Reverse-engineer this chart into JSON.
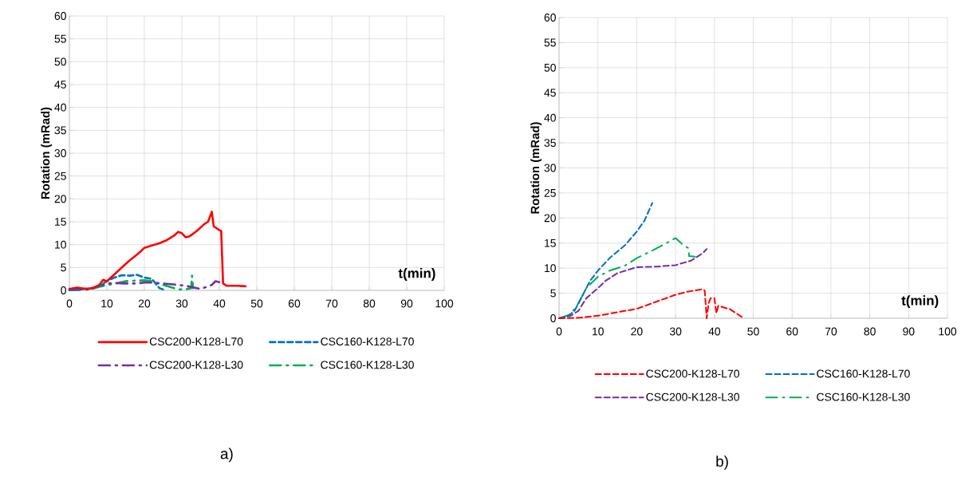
{
  "chart_data": [
    {
      "type": "line",
      "ylabel": "Rotation (mRad)",
      "xlabel": "t(min)",
      "xlim": [
        0,
        100
      ],
      "ylim": [
        0,
        60
      ],
      "xticks": [
        0,
        10,
        20,
        30,
        40,
        50,
        60,
        70,
        80,
        90,
        100
      ],
      "yticks": [
        0,
        5,
        10,
        15,
        20,
        25,
        30,
        35,
        40,
        45,
        50,
        55,
        60
      ],
      "grid": true,
      "legend": "bottom",
      "annotations": [
        "a)"
      ],
      "series": [
        {
          "name": "CSC200-K128-L70",
          "color": "#ff0000",
          "line_style": "solid",
          "x": [
            0,
            2,
            4,
            6,
            8,
            9,
            10,
            12,
            14,
            16,
            18,
            19,
            20,
            22,
            24,
            26,
            28,
            29,
            30,
            31,
            32,
            34,
            36,
            37,
            38,
            38.5,
            40,
            40.5,
            41,
            42,
            45,
            47
          ],
          "values": [
            0.3,
            0.6,
            0.4,
            0.4,
            1.2,
            2.3,
            2,
            3.5,
            5,
            6.5,
            7.8,
            8.5,
            9.3,
            9.8,
            10.3,
            11,
            12,
            12.8,
            12.5,
            11.6,
            11.8,
            13,
            14.5,
            15,
            17.2,
            14,
            13.2,
            13,
            1.5,
            1,
            1,
            0.9
          ]
        },
        {
          "name": "CSC160-K128-L70",
          "color": "#0070c0",
          "line_style": "dashed",
          "x": [
            0,
            5,
            8,
            10,
            12,
            14,
            16,
            18,
            20,
            22,
            23,
            24,
            25
          ],
          "values": [
            0.1,
            0.3,
            1,
            2,
            2.8,
            3.3,
            3.2,
            3.4,
            2.8,
            2.5,
            1.5,
            0.5,
            0.2
          ]
        },
        {
          "name": "CSC200-K128-L30",
          "color": "#7030a0",
          "line_style": "dashdot",
          "x": [
            0,
            5,
            8,
            10,
            12,
            15,
            18,
            20,
            22,
            25,
            29,
            31,
            35,
            38,
            39,
            40
          ],
          "values": [
            0.1,
            0.2,
            1,
            1.5,
            1.6,
            1.5,
            1.5,
            1.7,
            1.7,
            1.5,
            1.2,
            1,
            0.3,
            1.2,
            2,
            1.8
          ]
        },
        {
          "name": "CSC160-K128-L30",
          "color": "#00b050",
          "line_style": "dashdot",
          "x": [
            0,
            6,
            8,
            15,
            17,
            20,
            22,
            22.5,
            29,
            31,
            32.5,
            32.7,
            33
          ],
          "values": [
            0.1,
            0.3,
            0.8,
            2,
            2.1,
            2.2,
            2,
            1.8,
            0.2,
            0.2,
            0.5,
            3.2,
            0.5
          ]
        }
      ]
    },
    {
      "type": "line",
      "ylabel": "Rotation (mRad)",
      "xlabel": "t(min)",
      "xlim": [
        0,
        100
      ],
      "ylim": [
        0,
        60
      ],
      "xticks": [
        0,
        10,
        20,
        30,
        40,
        50,
        60,
        70,
        80,
        90,
        100
      ],
      "yticks": [
        0,
        5,
        10,
        15,
        20,
        25,
        30,
        35,
        40,
        45,
        50,
        55,
        60
      ],
      "grid": true,
      "legend": "bottom",
      "annotations": [
        "b)"
      ],
      "series": [
        {
          "name": "CSC200-K128-L70",
          "color": "#ff0000",
          "line_style": "dashed",
          "x": [
            0,
            5,
            10,
            15,
            20,
            25,
            30,
            33,
            37,
            37.5,
            38,
            38.5,
            39,
            40,
            40.5,
            41,
            44,
            46,
            47
          ],
          "values": [
            0,
            0.1,
            0.5,
            1.2,
            1.9,
            3.3,
            4.7,
            5.3,
            5.8,
            5.5,
            0,
            3,
            4,
            4,
            1,
            2.5,
            1.8,
            0.8,
            0.3
          ]
        },
        {
          "name": "CSC160-K128-L70",
          "color": "#0070c0",
          "line_style": "dashed",
          "x": [
            0,
            2,
            4,
            5,
            7,
            8,
            10,
            13,
            17,
            20,
            22,
            24
          ],
          "values": [
            0,
            0.3,
            1.5,
            3,
            6,
            7.5,
            9.5,
            12,
            14.6,
            17.3,
            19.5,
            23
          ]
        },
        {
          "name": "CSC200-K128-L30",
          "color": "#7030a0",
          "line_style": "dashed",
          "x": [
            0,
            3,
            5,
            7,
            10,
            12,
            15,
            20,
            25,
            30,
            34,
            37,
            38
          ],
          "values": [
            0,
            0.5,
            1.5,
            4,
            6,
            7.5,
            9,
            10.2,
            10.3,
            10.6,
            11.5,
            13,
            13.8
          ]
        },
        {
          "name": "CSC160-K128-L30",
          "color": "#00b050",
          "line_style": "dashdot",
          "x": [
            0,
            3,
            5,
            7,
            10,
            13,
            17,
            20,
            24,
            30,
            32,
            33.3,
            33.5,
            35
          ],
          "values": [
            0,
            0.8,
            3,
            6,
            8.3,
            9.5,
            10.5,
            12,
            13.5,
            16,
            14.6,
            14,
            12.4,
            12.3
          ]
        }
      ]
    }
  ]
}
